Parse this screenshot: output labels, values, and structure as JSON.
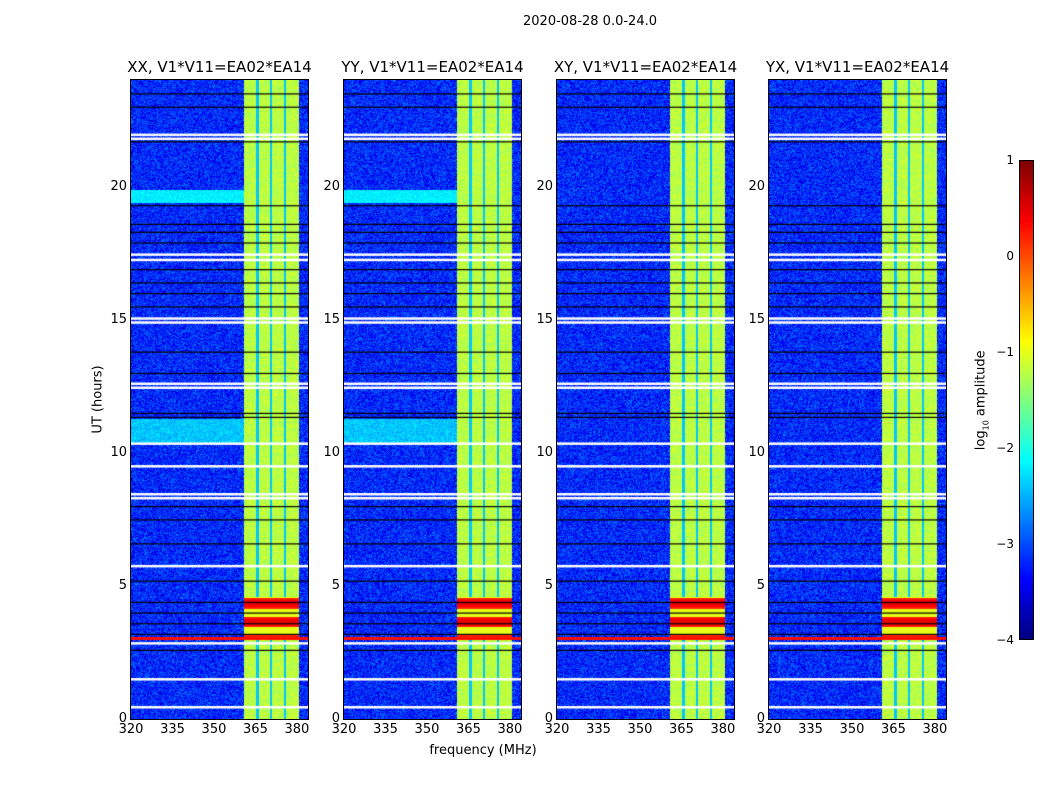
{
  "chart_data": {
    "type": "heatmap",
    "title": "2020-08-28 0.0-24.0",
    "xlabel": "frequency (MHz)",
    "ylabel": "UT (hours)",
    "xlim": [
      320,
      384
    ],
    "ylim": [
      0,
      24
    ],
    "xticks": [
      "320",
      "335",
      "350",
      "365",
      "380"
    ],
    "xtick_values": [
      320,
      335,
      350,
      365,
      380
    ],
    "yticks": [
      "0",
      "5",
      "10",
      "15",
      "20"
    ],
    "ytick_values": [
      0,
      5,
      10,
      15,
      20
    ],
    "panels": [
      {
        "title": "XX, V1*V11=EA02*EA14",
        "cyan_band_hours": [
          19.4,
          19.9
        ]
      },
      {
        "title": "YY, V1*V11=EA02*EA14",
        "cyan_band_hours": [
          19.4,
          19.9
        ]
      },
      {
        "title": "XY, V1*V11=EA02*EA14",
        "cyan_band_hours": null
      },
      {
        "title": "YX, V1*V11=EA02*EA14",
        "cyan_band_hours": null
      }
    ],
    "background_log_amplitude": -3.2,
    "rfi_band_mhz": [
      360.5,
      380.5
    ],
    "rfi_band_log_amplitude": -1.2,
    "rfi_band_gaps_mhz": [
      365.5,
      370.5,
      375.5
    ],
    "strong_rfi_hours": [
      3.0,
      4.6
    ],
    "strong_rfi_log_amplitude": 0.2,
    "flagged_gaps_hours": [
      0.45,
      1.5,
      2.85,
      5.75,
      8.3,
      8.45,
      9.5,
      10.35,
      12.45,
      12.6,
      14.9,
      15.05,
      17.25,
      17.45,
      21.8,
      21.95
    ],
    "dark_lines_hours": [
      2.6,
      3.2,
      3.6,
      4.0,
      4.4,
      5.2,
      6.6,
      7.5,
      8.0,
      11.35,
      11.5,
      13.0,
      13.8,
      15.5,
      16.0,
      16.4,
      16.9,
      17.9,
      18.3,
      18.6,
      19.3,
      21.7,
      23.0,
      23.5
    ],
    "colorbar": {
      "label": "log10 amplitude",
      "label_main": "log",
      "label_sub": "10",
      "label_rest": " amplitude",
      "range": [
        -4,
        1
      ],
      "ticks": [
        "1",
        "0",
        "−1",
        "−2",
        "−3",
        "−4"
      ],
      "tick_values": [
        1,
        0,
        -1,
        -2,
        -3,
        -4
      ],
      "colormap": "jet"
    }
  }
}
